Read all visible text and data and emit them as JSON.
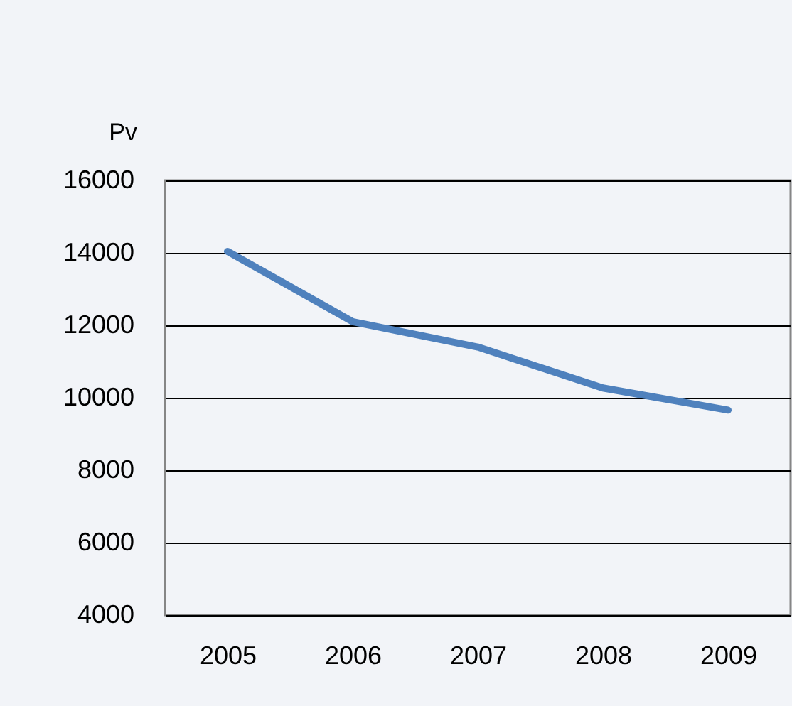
{
  "chart_data": {
    "type": "line",
    "ylabel": "Pv",
    "categories": [
      "2005",
      "2006",
      "2007",
      "2008",
      "2009"
    ],
    "series": [
      {
        "color": "#4f81bd",
        "values": [
          14040,
          12100,
          11400,
          10270,
          9660
        ]
      }
    ],
    "ylim": [
      4000,
      16000
    ],
    "yticks": [
      4000,
      6000,
      8000,
      10000,
      12000,
      14000,
      16000
    ],
    "grid": "y",
    "marker": "none",
    "line_style": "solid"
  }
}
